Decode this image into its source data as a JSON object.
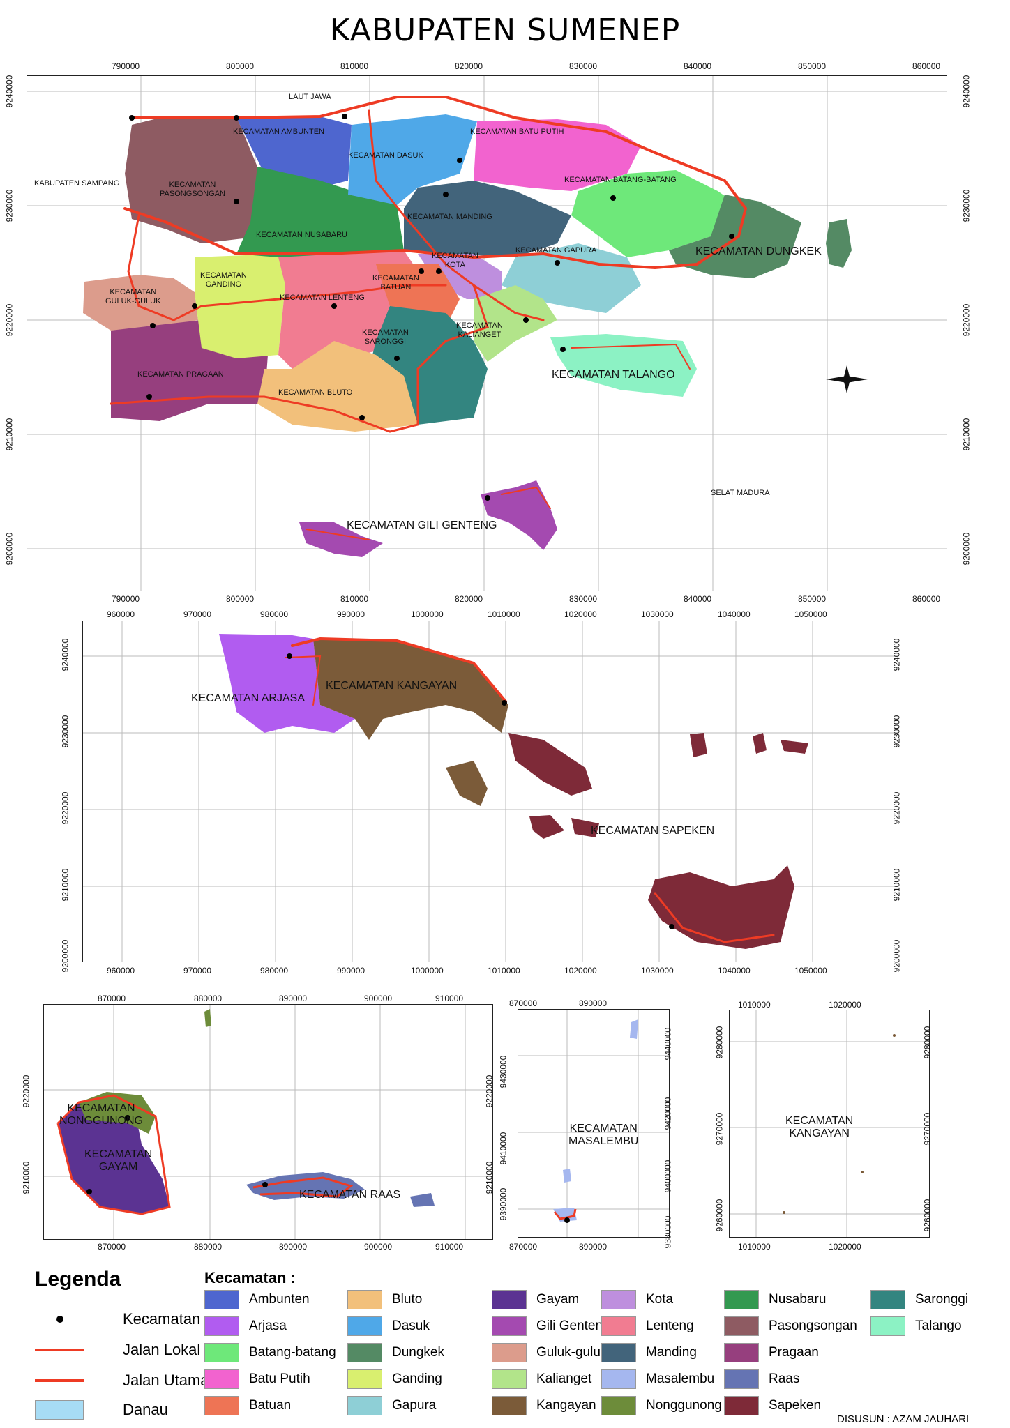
{
  "title": "KABUPATEN SUMENEP",
  "colors": {
    "ambunten": "#4e66cf",
    "arjasa": "#b15cf0",
    "batang_batang": "#6ee87a",
    "batu_putih": "#f263cf",
    "batuan": "#ee7455",
    "bluto": "#f2c07b",
    "dasuk": "#4fa8e8",
    "dungkek": "#548a64",
    "ganding": "#d9ef6f",
    "gapura": "#8ecfd6",
    "gayam": "#5b3392",
    "gili_genteng": "#a44ab0",
    "guluk_guluk": "#dc9c8c",
    "kalianget": "#b2e48a",
    "kangayan": "#7b5b39",
    "kota": "#be8fde",
    "lenteng": "#f17c91",
    "manding": "#42647b",
    "masalembu": "#a5b7ef",
    "nonggunong": "#6d8c3a",
    "nusabaru": "#339950",
    "pasongsongan": "#8e5b62",
    "pragaan": "#963f7e",
    "raas": "#6574b3",
    "saronggi": "#338580",
    "sapeken": "#7e2a38",
    "talango": "#8cf2c4",
    "road": "#ee3b24",
    "danau": "#a7dcf5"
  },
  "map1": {
    "x_ticks": [
      "790000",
      "800000",
      "810000",
      "820000",
      "830000",
      "840000",
      "850000",
      "860000"
    ],
    "y_ticks": [
      "9240000",
      "9230000",
      "9220000",
      "9210000",
      "9200000"
    ],
    "labels": {
      "laut_jawa": "LAUT JAWA",
      "kab_sampang": "KABUPATEN SAMPANG",
      "selat_madura": "SELAT MADURA",
      "ambunten": "KECAMATAN AMBUNTEN",
      "dasuk": "KECAMATAN DASUK",
      "batu_putih": "KECAMATAN BATU PUTIH",
      "pasongsongan": "KECAMATAN\nPASONGSONGAN",
      "batang_batang": "KECAMATAN BATANG-BATANG",
      "manding": "KECAMATAN MANDING",
      "nusabaru": "KECAMATAN NUSABARU",
      "kota": "KECAMATAN\nKOTA",
      "gapura": "KECAMATAN GAPURA",
      "dungkek": "KECAMATAN DUNGKEK",
      "ganding": "KECAMATAN\nGANDING",
      "guluk_guluk": "KECAMATAN\nGULUK-GULUK",
      "batuan": "KECAMATAN\nBATUAN",
      "lenteng": "KECAMATAN LENTENG",
      "kalianget": "KECAMATAN\nKALIANGET",
      "saronggi": "KECAMATAN\nSARONGGI",
      "pragaan": "KECAMATAN PRAGAAN",
      "bluto": "KECAMATAN BLUTO",
      "talango": "KECAMATAN TALANGO",
      "gili_genteng": "KECAMATAN GILI GENTENG"
    }
  },
  "map2": {
    "x_ticks": [
      "960000",
      "970000",
      "980000",
      "990000",
      "1000000",
      "1010000",
      "1020000",
      "1030000",
      "1040000",
      "1050000"
    ],
    "y_ticks": [
      "9240000",
      "9230000",
      "9220000",
      "9210000",
      "9200000"
    ],
    "labels": {
      "arjasa": "KECAMATAN ARJASA",
      "kangayan": "KECAMATAN KANGAYAN",
      "sapeken": "KECAMATAN SAPEKEN"
    }
  },
  "map3": {
    "x_ticks": [
      "870000",
      "880000",
      "890000",
      "900000",
      "910000"
    ],
    "y_ticks": [
      "9220000",
      "9210000"
    ],
    "labels": {
      "nonggunong": "KECAMATAN\nNONGGUNONG",
      "gayam": "KECAMATAN\nGAYAM",
      "raas": "KECAMATAN RAAS"
    }
  },
  "map4": {
    "x_ticks": [
      "870000",
      "890000"
    ],
    "y_ticks_left": [
      "9430000",
      "9410000",
      "9390000"
    ],
    "y_ticks_right": [
      "9440000",
      "9420000",
      "9400000",
      "9380000"
    ],
    "labels": {
      "masalembu": "KECAMATAN\nMASALEMBU"
    }
  },
  "map5": {
    "x_ticks": [
      "1010000",
      "1020000"
    ],
    "y_ticks": [
      "9280000",
      "9270000",
      "9260000"
    ],
    "labels": {
      "kangayan": "KECAMATAN\nKANGAYAN"
    }
  },
  "legend": {
    "title": "Legenda",
    "kecamatan_title": "Kecamatan :",
    "symbols": [
      {
        "label": "Kecamatan",
        "kind": "dot"
      },
      {
        "label": "Jalan Lokal",
        "kind": "thin-line"
      },
      {
        "label": "Jalan Utama",
        "kind": "thick-line"
      },
      {
        "label": "Danau",
        "kind": "box"
      }
    ],
    "columns": [
      [
        {
          "name": "Ambunten",
          "key": "ambunten"
        },
        {
          "name": "Arjasa",
          "key": "arjasa"
        },
        {
          "name": "Batang-batang",
          "key": "batang_batang"
        },
        {
          "name": "Batu Putih",
          "key": "batu_putih"
        },
        {
          "name": "Batuan",
          "key": "batuan"
        }
      ],
      [
        {
          "name": "Bluto",
          "key": "bluto"
        },
        {
          "name": "Dasuk",
          "key": "dasuk"
        },
        {
          "name": "Dungkek",
          "key": "dungkek"
        },
        {
          "name": "Ganding",
          "key": "ganding"
        },
        {
          "name": "Gapura",
          "key": "gapura"
        }
      ],
      [
        {
          "name": "Gayam",
          "key": "gayam"
        },
        {
          "name": "Gili Genteng",
          "key": "gili_genteng"
        },
        {
          "name": "Guluk-guluk",
          "key": "guluk_guluk"
        },
        {
          "name": "Kalianget",
          "key": "kalianget"
        },
        {
          "name": "Kangayan",
          "key": "kangayan"
        }
      ],
      [
        {
          "name": "Kota",
          "key": "kota"
        },
        {
          "name": "Lenteng",
          "key": "lenteng"
        },
        {
          "name": "Manding",
          "key": "manding"
        },
        {
          "name": "Masalembu",
          "key": "masalembu"
        },
        {
          "name": "Nonggunong",
          "key": "nonggunong"
        }
      ],
      [
        {
          "name": "Nusabaru",
          "key": "nusabaru"
        },
        {
          "name": "Pasongsongan",
          "key": "pasongsongan"
        },
        {
          "name": "Pragaan",
          "key": "pragaan"
        },
        {
          "name": "Raas",
          "key": "raas"
        },
        {
          "name": "Sapeken",
          "key": "sapeken"
        }
      ],
      [
        {
          "name": "Saronggi",
          "key": "saronggi"
        },
        {
          "name": "Talango",
          "key": "talango"
        }
      ]
    ]
  },
  "author": "DISUSUN : AZAM JAUHARI"
}
